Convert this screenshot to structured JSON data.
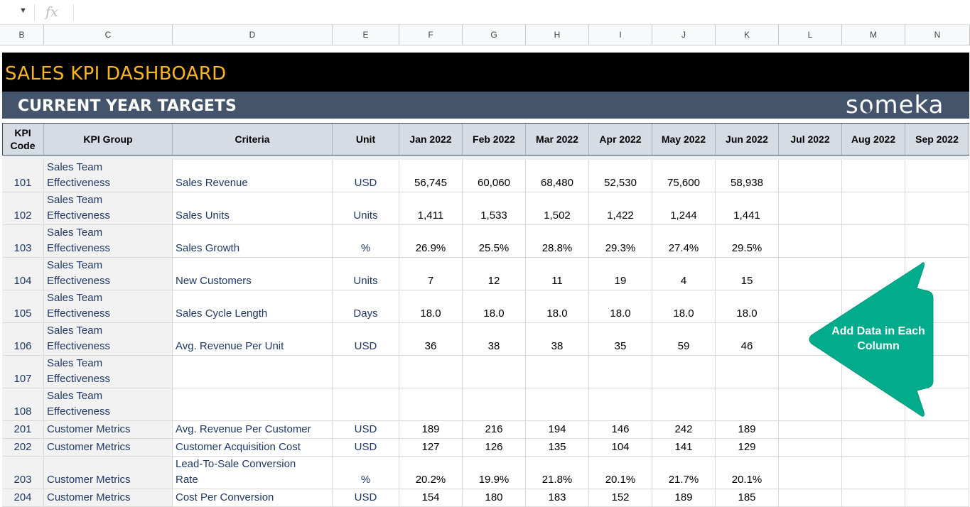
{
  "formula_bar": {
    "fx_label": "fx",
    "value": ""
  },
  "columns": [
    "B",
    "C",
    "D",
    "E",
    "F",
    "G",
    "H",
    "I",
    "J",
    "K",
    "L",
    "M",
    "N"
  ],
  "banner": {
    "title": "SALES KPI DASHBOARD",
    "subtitle": "CURRENT YEAR TARGETS",
    "logo": "someka"
  },
  "table": {
    "headers": {
      "code": "KPI\nCode",
      "group": "KPI Group",
      "criteria": "Criteria",
      "unit": "Unit",
      "months": [
        "Jan 2022",
        "Feb 2022",
        "Mar 2022",
        "Apr 2022",
        "May 2022",
        "Jun 2022",
        "Jul 2022",
        "Aug 2022",
        "Sep 2022"
      ]
    },
    "rows": [
      {
        "code": "101",
        "group": "Sales Team\nEffectiveness",
        "criteria": "Sales Revenue",
        "unit": "USD",
        "values": [
          "56,745",
          "60,060",
          "68,480",
          "52,530",
          "75,600",
          "58,938",
          "",
          "",
          ""
        ]
      },
      {
        "code": "102",
        "group": "Sales Team\nEffectiveness",
        "criteria": "Sales Units",
        "unit": "Units",
        "values": [
          "1,411",
          "1,533",
          "1,502",
          "1,422",
          "1,244",
          "1,441",
          "",
          "",
          ""
        ]
      },
      {
        "code": "103",
        "group": "Sales Team\nEffectiveness",
        "criteria": "Sales Growth",
        "unit": "%",
        "values": [
          "26.9%",
          "25.5%",
          "28.8%",
          "29.3%",
          "27.4%",
          "29.5%",
          "",
          "",
          ""
        ]
      },
      {
        "code": "104",
        "group": "Sales Team\nEffectiveness",
        "criteria": "New Customers",
        "unit": "Units",
        "values": [
          "7",
          "12",
          "11",
          "19",
          "4",
          "15",
          "",
          "",
          ""
        ]
      },
      {
        "code": "105",
        "group": "Sales Team\nEffectiveness",
        "criteria": "Sales Cycle Length",
        "unit": "Days",
        "values": [
          "18.0",
          "18.0",
          "18.0",
          "18.0",
          "18.0",
          "18.0",
          "",
          "",
          ""
        ]
      },
      {
        "code": "106",
        "group": "Sales Team\nEffectiveness",
        "criteria": "Avg. Revenue Per Unit",
        "unit": "USD",
        "values": [
          "36",
          "38",
          "38",
          "35",
          "59",
          "46",
          "",
          "",
          ""
        ]
      },
      {
        "code": "107",
        "group": "Sales Team\nEffectiveness",
        "criteria": "",
        "unit": "",
        "values": [
          "",
          "",
          "",
          "",
          "",
          "",
          "",
          "",
          ""
        ]
      },
      {
        "code": "108",
        "group": "Sales Team\nEffectiveness",
        "criteria": "",
        "unit": "",
        "values": [
          "",
          "",
          "",
          "",
          "",
          "",
          "",
          "",
          ""
        ]
      },
      {
        "code": "201",
        "group": "Customer Metrics",
        "criteria": "Avg. Revenue Per Customer",
        "unit": "USD",
        "values": [
          "189",
          "216",
          "194",
          "146",
          "242",
          "189",
          "",
          "",
          ""
        ]
      },
      {
        "code": "202",
        "group": "Customer Metrics",
        "criteria": "Customer Acquisition Cost",
        "unit": "USD",
        "values": [
          "127",
          "126",
          "135",
          "104",
          "141",
          "129",
          "",
          "",
          ""
        ]
      },
      {
        "code": "203",
        "group": "Customer Metrics",
        "criteria": "Lead-To-Sale Conversion\nRate",
        "unit": "%",
        "values": [
          "20.2%",
          "19.9%",
          "21.8%",
          "20.1%",
          "21.7%",
          "20.1%",
          "",
          "",
          ""
        ]
      },
      {
        "code": "204",
        "group": "Customer Metrics",
        "criteria": "Cost Per Conversion",
        "unit": "USD",
        "values": [
          "154",
          "180",
          "183",
          "152",
          "189",
          "185",
          "",
          "",
          ""
        ]
      }
    ]
  },
  "callout": {
    "text": "Add Data in Each Column",
    "color": "#00ac8c"
  }
}
